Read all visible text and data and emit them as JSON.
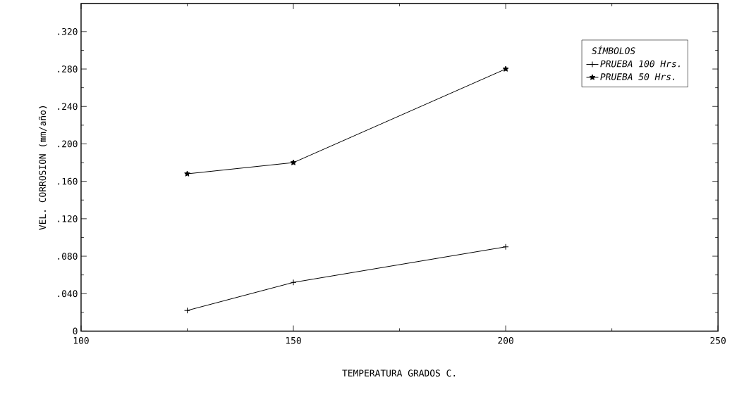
{
  "chart_data": {
    "type": "line",
    "xlabel": "TEMPERATURA    GRADOS   C.",
    "ylabel": "VEL. CORROSION (mm/año)",
    "legend_title": "SÍMBOLOS",
    "legend": "top right",
    "grid": false,
    "line_style": "solid",
    "xlim": [
      100,
      250
    ],
    "xticks": [
      100,
      150,
      200,
      250
    ],
    "ylim": [
      0,
      0.35
    ],
    "yticks": [
      0,
      {
        "value": 0.04,
        "label": ".040"
      },
      {
        "value": 0.08,
        "label": ".080"
      },
      {
        "value": 0.12,
        "label": ".120"
      },
      {
        "value": 0.16,
        "label": ".160"
      },
      {
        "value": 0.2,
        "label": ".200"
      },
      {
        "value": 0.24,
        "label": ".240"
      },
      {
        "value": 0.28,
        "label": ".280"
      },
      {
        "value": 0.32,
        "label": ".320"
      }
    ],
    "series": [
      {
        "name": "PRUEBA 100 Hrs.",
        "color": "#000000",
        "marker": "cross",
        "x": [
          125,
          150,
          200
        ],
        "values": [
          0.022,
          0.052,
          0.09
        ]
      },
      {
        "name": "PRUEBA 50 Hrs.",
        "color": "#000000",
        "marker": "star",
        "x": [
          125,
          150,
          200
        ],
        "values": [
          0.168,
          0.18,
          0.28
        ]
      }
    ]
  }
}
